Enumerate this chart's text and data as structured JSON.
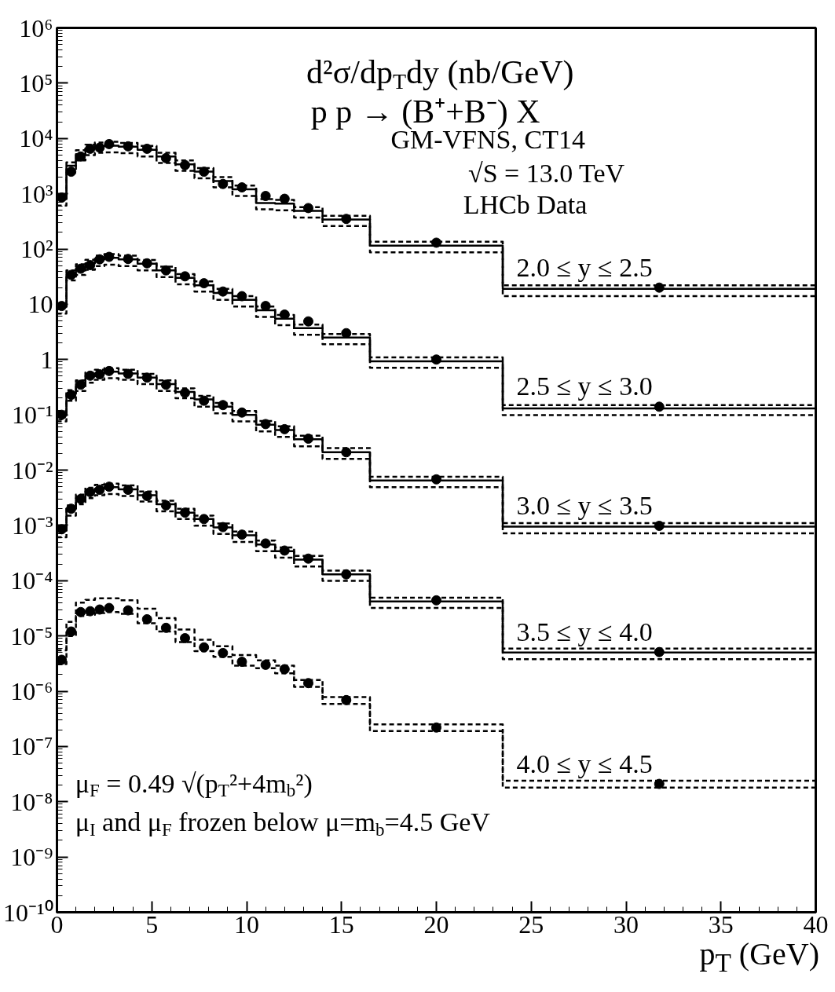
{
  "chart_data": {
    "type": "scatter",
    "title": "d²σ/dp$_{T}$dy (nb/GeV)",
    "subtitle": "p p → (B⁺+B⁻) X",
    "xlabel": "p$_{T}$ (GeV)",
    "log": "y",
    "grid": false,
    "legend": false,
    "xlim": [
      0,
      40
    ],
    "xticks": [
      0,
      5,
      10,
      15,
      20,
      25,
      30,
      35,
      40
    ],
    "ylim": [
      1e-10,
      1000000.0
    ],
    "yticks": [
      {
        "value": 1e-10,
        "label": "10⁻¹⁰"
      },
      {
        "value": 1e-09,
        "label": "10⁻⁹"
      },
      {
        "value": 1e-08,
        "label": "10⁻⁸"
      },
      {
        "value": 1e-07,
        "label": "10⁻⁷"
      },
      {
        "value": 1e-06,
        "label": "10⁻⁶"
      },
      {
        "value": 1e-05,
        "label": "10⁻⁵"
      },
      {
        "value": 0.0001,
        "label": "10⁻⁴"
      },
      {
        "value": 0.001,
        "label": "10⁻³"
      },
      {
        "value": 0.01,
        "label": "10⁻²"
      },
      {
        "value": 0.1,
        "label": "10⁻¹"
      },
      1,
      10,
      {
        "value": 100,
        "label": "10²"
      },
      {
        "value": 1000,
        "label": "10³"
      },
      {
        "value": 10000.0,
        "label": "10⁴"
      },
      {
        "value": 100000.0,
        "label": "10⁵"
      },
      {
        "value": 1000000.0,
        "label": "10⁶"
      }
    ],
    "annotations": [
      "GM-VFNS, CT14",
      "√S = 13.0 TeV",
      "LHCb Data",
      "μ$_{F}$ = 0.49 √(p$_{T}$²+4m$_{b}$²)",
      "μ$_{I}$ and μ$_{F}$ frozen below μ=m$_{b}$=4.5 GeV"
    ],
    "series": [
      {
        "type": "step",
        "color": "#000000",
        "line_style": "solid",
        "x": [
          0,
          0.5,
          1,
          1.5,
          2,
          2.5,
          3.25,
          4.25,
          5.25,
          6.25,
          7.25,
          8.25,
          9.25,
          10.5,
          11.5,
          12.5,
          14,
          16.5,
          23.5,
          40
        ],
        "values": [
          800,
          3200,
          5200,
          6600,
          7200,
          7400,
          7100,
          6200,
          4700,
          3400,
          2500,
          1700,
          1200,
          680,
          660,
          490,
          340,
          115,
          19,
          19
        ]
      },
      {
        "type": "step",
        "color": "#000000",
        "line_style": "dashed",
        "x": [
          0,
          0.5,
          1,
          1.5,
          2,
          2.5,
          3.25,
          4.25,
          5.25,
          6.25,
          7.25,
          8.25,
          9.25,
          10.5,
          11.5,
          12.5,
          14,
          16.5,
          23.5,
          40
        ],
        "values": [
          940,
          3700,
          6100,
          7700,
          8400,
          8700,
          8300,
          7300,
          5500,
          4000,
          2900,
          2000,
          1400,
          800,
          770,
          570,
          400,
          135,
          22,
          22
        ]
      },
      {
        "type": "step",
        "color": "#000000",
        "line_style": "dashed",
        "x": [
          0,
          0.5,
          1,
          1.5,
          2,
          2.5,
          3.25,
          4.25,
          5.25,
          6.25,
          7.25,
          8.25,
          9.25,
          10.5,
          11.5,
          12.5,
          14,
          16.5,
          23.5,
          40
        ],
        "values": [
          610,
          2400,
          4000,
          5000,
          5500,
          5600,
          5400,
          4700,
          3600,
          2600,
          1900,
          1300,
          910,
          520,
          500,
          370,
          260,
          87,
          14,
          14
        ]
      },
      {
        "type": "scatter",
        "marker": "circle",
        "name": "2.0 ≤  y ≤ 2.5",
        "color": "#000000",
        "x": [
          0.25,
          0.75,
          1.25,
          1.75,
          2.25,
          2.75,
          3.75,
          4.75,
          5.75,
          6.75,
          7.75,
          8.75,
          9.75,
          11,
          12,
          13.25,
          15.25,
          20,
          31.75
        ],
        "values": [
          850,
          2500,
          4700,
          6500,
          6800,
          7900,
          7200,
          6500,
          4400,
          3300,
          2500,
          1500,
          1300,
          910,
          810,
          550,
          350,
          130,
          20
        ]
      },
      {
        "type": "step",
        "color": "#000000",
        "line_style": "solid",
        "x": [
          0,
          0.5,
          1,
          1.5,
          2,
          2.5,
          3.25,
          4.25,
          5.25,
          6.25,
          7.25,
          8.25,
          9.25,
          10.5,
          11.5,
          12.5,
          14,
          16.5,
          23.5,
          40
        ],
        "values": [
          9.0,
          35,
          45,
          55,
          65,
          69,
          65,
          54,
          41,
          30,
          22,
          16,
          12,
          7.8,
          5.5,
          3.7,
          2.5,
          0.93,
          0.13,
          0.13
        ]
      },
      {
        "type": "step",
        "color": "#000000",
        "line_style": "dashed",
        "x": [
          0,
          0.5,
          1,
          1.5,
          2,
          2.5,
          3.25,
          4.25,
          5.25,
          6.25,
          7.25,
          8.25,
          9.25,
          10.5,
          11.5,
          12.5,
          14,
          16.5,
          23.5,
          40
        ],
        "values": [
          10.5,
          41,
          53,
          64,
          76,
          81,
          76,
          63,
          48,
          35,
          26,
          19,
          14,
          9.1,
          6.4,
          4.3,
          2.9,
          1.09,
          0.15,
          0.15
        ]
      },
      {
        "type": "step",
        "color": "#000000",
        "line_style": "dashed",
        "x": [
          0,
          0.5,
          1,
          1.5,
          2,
          2.5,
          3.25,
          4.25,
          5.25,
          6.25,
          7.25,
          8.25,
          9.25,
          10.5,
          11.5,
          12.5,
          14,
          16.5,
          23.5,
          40
        ],
        "values": [
          6.8,
          27,
          34,
          42,
          49,
          52,
          49,
          41,
          31,
          23,
          17,
          12,
          9.1,
          5.9,
          4.2,
          2.8,
          1.9,
          0.71,
          0.099,
          0.099
        ]
      },
      {
        "type": "scatter",
        "marker": "circle",
        "name": "2.5 ≤  y ≤ 3.0",
        "color": "#000000",
        "x": [
          0.25,
          0.75,
          1.25,
          1.75,
          2.25,
          2.75,
          3.75,
          4.75,
          5.75,
          6.75,
          7.75,
          8.75,
          9.75,
          11,
          12,
          13.25,
          15.25,
          20,
          31.75
        ],
        "values": [
          9.3,
          34,
          44,
          51,
          65,
          72,
          66,
          55,
          41,
          32,
          24,
          17,
          14,
          9.3,
          6.5,
          4.9,
          3.0,
          1.0,
          0.14
        ]
      },
      {
        "type": "step",
        "color": "#000000",
        "line_style": "solid",
        "x": [
          0,
          0.5,
          1,
          1.5,
          2,
          2.5,
          3.25,
          4.25,
          5.25,
          6.25,
          7.25,
          8.25,
          9.25,
          10.5,
          11.5,
          12.5,
          14,
          16.5,
          23.5,
          40
        ],
        "values": [
          0.1,
          0.24,
          0.36,
          0.5,
          0.56,
          0.6,
          0.56,
          0.47,
          0.36,
          0.26,
          0.19,
          0.14,
          0.1,
          0.066,
          0.053,
          0.036,
          0.021,
          0.0065,
          0.00095,
          0.00095
        ]
      },
      {
        "type": "step",
        "color": "#000000",
        "line_style": "dashed",
        "x": [
          0,
          0.5,
          1,
          1.5,
          2,
          2.5,
          3.25,
          4.25,
          5.25,
          6.25,
          7.25,
          8.25,
          9.25,
          10.5,
          11.5,
          12.5,
          14,
          16.5,
          23.5,
          40
        ],
        "values": [
          0.117,
          0.28,
          0.42,
          0.585,
          0.655,
          0.7,
          0.655,
          0.55,
          0.42,
          0.3,
          0.22,
          0.164,
          0.117,
          0.077,
          0.062,
          0.042,
          0.025,
          0.0076,
          0.0011,
          0.0011
        ]
      },
      {
        "type": "step",
        "color": "#000000",
        "line_style": "dashed",
        "x": [
          0,
          0.5,
          1,
          1.5,
          2,
          2.5,
          3.25,
          4.25,
          5.25,
          6.25,
          7.25,
          8.25,
          9.25,
          10.5,
          11.5,
          12.5,
          14,
          16.5,
          23.5,
          40
        ],
        "values": [
          0.076,
          0.18,
          0.27,
          0.38,
          0.43,
          0.46,
          0.43,
          0.36,
          0.27,
          0.2,
          0.14,
          0.106,
          0.076,
          0.05,
          0.04,
          0.027,
          0.016,
          0.0049,
          0.00072,
          0.00072
        ]
      },
      {
        "type": "scatter",
        "marker": "circle",
        "name": "3.0 ≤  y ≤ 3.5",
        "color": "#000000",
        "x": [
          0.25,
          0.75,
          1.25,
          1.75,
          2.25,
          2.75,
          3.75,
          4.75,
          5.75,
          6.75,
          7.75,
          8.75,
          9.75,
          11,
          12,
          13.25,
          15.25,
          20,
          31.75
        ],
        "values": [
          0.1,
          0.23,
          0.35,
          0.51,
          0.54,
          0.62,
          0.55,
          0.47,
          0.35,
          0.25,
          0.18,
          0.15,
          0.11,
          0.068,
          0.055,
          0.037,
          0.021,
          0.0068,
          0.00098
        ]
      },
      {
        "type": "step",
        "color": "#000000",
        "line_style": "solid",
        "x": [
          0,
          0.5,
          1,
          1.5,
          2,
          2.5,
          3.25,
          4.25,
          5.25,
          6.25,
          7.25,
          8.25,
          9.25,
          10.5,
          11.5,
          12.5,
          14,
          16.5,
          23.5,
          40
        ],
        "values": [
          0.0008,
          0.002,
          0.0031,
          0.0041,
          0.0046,
          0.0049,
          0.0045,
          0.0035,
          0.0024,
          0.0017,
          0.0013,
          0.00092,
          0.00066,
          0.00045,
          0.00034,
          0.00024,
          0.00013,
          4.2e-05,
          5e-06,
          5e-06
        ]
      },
      {
        "type": "step",
        "color": "#000000",
        "line_style": "dashed",
        "x": [
          0,
          0.5,
          1,
          1.5,
          2,
          2.5,
          3.25,
          4.25,
          5.25,
          6.25,
          7.25,
          8.25,
          9.25,
          10.5,
          11.5,
          12.5,
          14,
          16.5,
          23.5,
          40
        ],
        "values": [
          0.00094,
          0.0023,
          0.0036,
          0.0048,
          0.0054,
          0.0057,
          0.0053,
          0.0041,
          0.0028,
          0.002,
          0.0015,
          0.00108,
          0.00077,
          0.00053,
          0.0004,
          0.00028,
          0.000152,
          4.9e-05,
          5.9e-06,
          5.9e-06
        ]
      },
      {
        "type": "step",
        "color": "#000000",
        "line_style": "dashed",
        "x": [
          0,
          0.5,
          1,
          1.5,
          2,
          2.5,
          3.25,
          4.25,
          5.25,
          6.25,
          7.25,
          8.25,
          9.25,
          10.5,
          11.5,
          12.5,
          14,
          16.5,
          23.5,
          40
        ],
        "values": [
          0.00061,
          0.0015,
          0.0024,
          0.0031,
          0.0035,
          0.0037,
          0.0034,
          0.0027,
          0.0018,
          0.0013,
          0.00099,
          0.0007,
          0.0005,
          0.00034,
          0.00026,
          0.00018,
          9.9e-05,
          3.2e-05,
          3.8e-06,
          3.8e-06
        ]
      },
      {
        "type": "scatter",
        "marker": "circle",
        "name": "3.5 ≤  y ≤ 4.0",
        "color": "#000000",
        "x": [
          0.25,
          0.75,
          1.25,
          1.75,
          2.25,
          2.75,
          3.75,
          4.75,
          5.75,
          6.75,
          7.75,
          8.75,
          9.75,
          11,
          12,
          13.25,
          15.25,
          20,
          31.75
        ],
        "values": [
          0.00085,
          0.002,
          0.003,
          0.004,
          0.0044,
          0.005,
          0.0044,
          0.0034,
          0.0023,
          0.0017,
          0.0013,
          0.00093,
          0.00068,
          0.00047,
          0.00035,
          0.00025,
          0.00013,
          4.4e-05,
          5.1e-06
        ]
      },
      {
        "type": "step",
        "color": "#000000",
        "line_style": "dashed",
        "x": [
          0,
          0.5,
          1,
          1.5,
          2,
          2.5,
          3.25,
          4.25,
          5.25,
          6.25,
          7.25,
          8.25,
          9.25,
          10.5,
          11.5,
          12.5,
          14,
          16.5,
          23.5,
          40
        ],
        "values": [
          5.5e-06,
          1.8e-05,
          4e-05,
          4.5e-05,
          4.8e-05,
          4.8e-05,
          4.4e-05,
          3.1e-05,
          2.1e-05,
          1.3e-05,
          8.5e-06,
          6.5e-06,
          4.5e-06,
          3.6e-06,
          2.9e-06,
          1.6e-06,
          7.8e-07,
          2.5e-07,
          2.4e-08,
          2.4e-08
        ]
      },
      {
        "type": "step",
        "color": "#000000",
        "line_style": "dashed",
        "x": [
          0,
          0.5,
          1,
          1.5,
          2,
          2.5,
          3.25,
          4.25,
          5.25,
          6.25,
          7.25,
          8.25,
          9.25,
          10.5,
          11.5,
          12.5,
          14,
          16.5,
          23.5,
          40
        ],
        "values": [
          3.1e-06,
          1e-05,
          2.3e-05,
          2.4e-05,
          2.6e-05,
          2.7e-05,
          2.5e-05,
          1.7e-05,
          1.2e-05,
          7.7e-06,
          5.3e-06,
          4.2e-06,
          2.9e-06,
          2.6e-06,
          2.1e-06,
          1.2e-06,
          5.9e-07,
          1.9e-07,
          1.8e-08,
          1.8e-08
        ]
      },
      {
        "type": "scatter",
        "marker": "circle",
        "name": "4.0 ≤  y ≤ 4.5",
        "color": "#000000",
        "x": [
          0.25,
          0.75,
          1.25,
          1.75,
          2.25,
          2.75,
          3.75,
          4.75,
          5.75,
          6.75,
          7.75,
          8.75,
          9.75,
          11,
          12,
          13.25,
          15.25,
          20,
          31.75
        ],
        "values": [
          3.7e-06,
          1.2e-05,
          2.7e-05,
          2.8e-05,
          3e-05,
          3.2e-05,
          2.9e-05,
          2e-05,
          1.4e-05,
          9.1e-06,
          6.2e-06,
          4.9e-06,
          3.4e-06,
          3e-06,
          2.5e-06,
          1.4e-06,
          6.9e-07,
          2.2e-07,
          2.1e-08
        ]
      }
    ]
  }
}
